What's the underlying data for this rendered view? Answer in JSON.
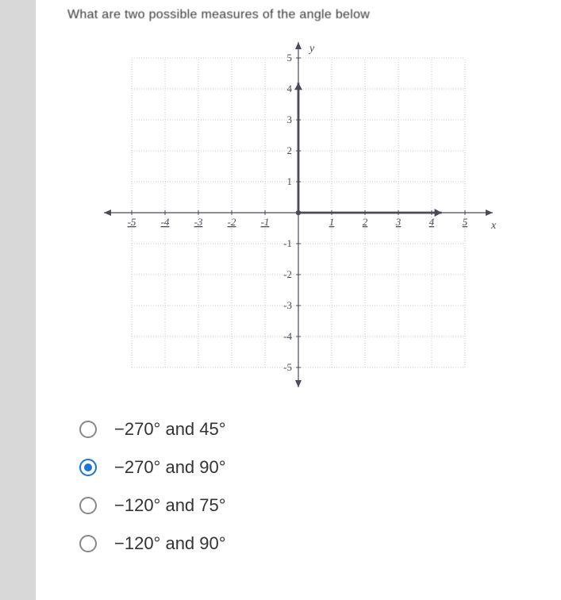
{
  "question": "What are two possible measures of the angle below",
  "chart": {
    "type": "coordinate-grid",
    "xlim": [
      -5,
      5
    ],
    "ylim": [
      -5,
      5
    ],
    "tick_step": 1,
    "x_axis_label": "x",
    "y_axis_label": "y",
    "grid_color": "#c8c8c8",
    "axis_color": "#4a4a5a",
    "ray_color": "#4a4a5a",
    "background_color": "#ffffff",
    "label_fontsize": 13,
    "tick_labels_x": [
      "-5",
      "-4",
      "-3",
      "-2",
      "-1",
      "1",
      "2",
      "3",
      "4",
      "5"
    ],
    "tick_labels_y": [
      "-5",
      "-4",
      "-3",
      "-2",
      "-1",
      "1",
      "2",
      "3",
      "4",
      "5"
    ],
    "angle_rays": [
      {
        "from": [
          0,
          0
        ],
        "to": [
          4.3,
          0
        ],
        "arrow": true
      },
      {
        "from": [
          0,
          0
        ],
        "to": [
          0,
          4.2
        ],
        "arrow": true
      }
    ]
  },
  "options": [
    {
      "label": "−270° and 45°",
      "selected": false
    },
    {
      "label": "−270° and 90°",
      "selected": true
    },
    {
      "label": "−120° and 75°",
      "selected": false
    },
    {
      "label": "−120° and 90°",
      "selected": false
    }
  ]
}
